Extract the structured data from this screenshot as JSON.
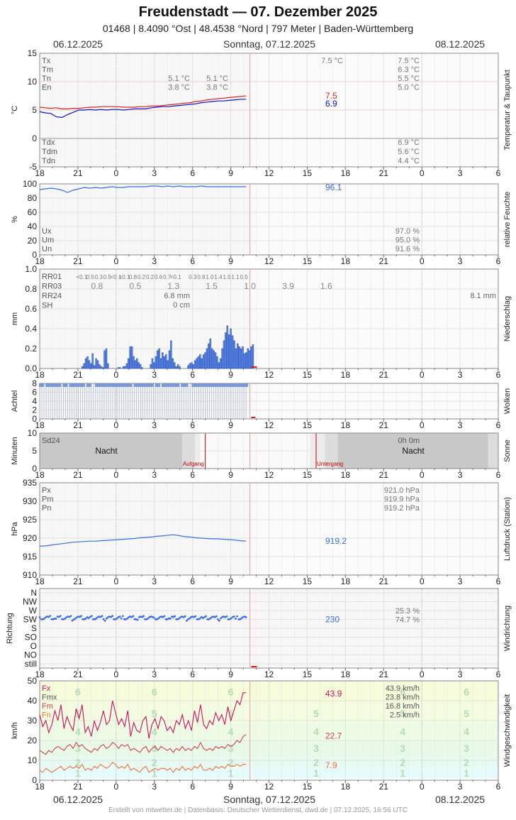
{
  "header": {
    "title": "Freudenstadt  —  07. Dezember 2025",
    "subtitle": "01468  |  8.4090 °Ost  |  48.4538 °Nord  |  797 Meter  |  Baden-Württemberg"
  },
  "dates": {
    "left": "06.12.2025",
    "center": "Sonntag, 07.12.2025",
    "right": "08.12.2025"
  },
  "footer": {
    "credit": "Erstellt von mtwetter.de | Datenbasis: Deutscher Wetterdienst, dwd.de | 07.12.2025, 16:56 UTC"
  },
  "colors": {
    "temp": "#e02020",
    "dew": "#1010d0",
    "blue": "#3a6ee8",
    "gust": "#cc1060",
    "mean_wind": "#d04050",
    "min_wind": "#f07040",
    "now_line": "#f0a0a0",
    "sun_event": "#cc0000"
  },
  "chart_data": [
    {
      "type": "line",
      "id": "temp",
      "ylabel": "°C",
      "side_label": "Temperatur & Taupunkt",
      "x_ticks": [
        "18",
        "21",
        "0",
        "3",
        "6",
        "9",
        "12",
        "15",
        "18",
        "21",
        "0",
        "3",
        "6"
      ],
      "ylim": [
        -5,
        15
      ],
      "y_ticks": [
        15,
        10,
        5,
        0,
        -5
      ],
      "series": [
        {
          "name": "Temperatur",
          "values": [
            5.5,
            5.4,
            5.3,
            5.4,
            5.2,
            5.2,
            5.3,
            5.3,
            5.4,
            5.5,
            5.5,
            5.6,
            5.6,
            5.6,
            5.6,
            5.5,
            5.5,
            5.5,
            5.6,
            5.6,
            5.7,
            5.7,
            5.8,
            5.9,
            6.0,
            6.1,
            6.2,
            6.3,
            6.5,
            6.6,
            6.8,
            6.9,
            7.0,
            7.1,
            7.2,
            7.3,
            7.4,
            7.5
          ],
          "last": "7.5"
        },
        {
          "name": "Taupunkt",
          "values": [
            4.7,
            4.5,
            4.4,
            3.8,
            3.7,
            4.2,
            4.6,
            5.0,
            5.0,
            5.1,
            5.0,
            5.1,
            5.0,
            5.1,
            5.1,
            5.0,
            5.1,
            5.2,
            5.2,
            5.2,
            5.4,
            5.5,
            5.6,
            5.6,
            5.7,
            5.8,
            5.9,
            6.0,
            6.1,
            6.3,
            6.4,
            6.5,
            6.6,
            6.6,
            6.7,
            6.8,
            6.9,
            6.9
          ],
          "last": "6.9"
        }
      ],
      "labels_left": [
        "Tx",
        "Tm",
        "Tn",
        "En"
      ],
      "labels_left_bottom": [
        "Tdx",
        "Tdm",
        "Tdn"
      ],
      "prev_values": [
        [
          "",
          ""
        ],
        [
          "",
          ""
        ],
        [
          "5.1 °C",
          "5.1 °C"
        ],
        [
          "3.8 °C",
          "3.8 °C"
        ]
      ],
      "current_top": "7.5 °C",
      "right_values": [
        "7.5 °C",
        "6.3 °C",
        "5.5 °C",
        "5.0 °C"
      ],
      "right_values_bottom": [
        "6.9 °C",
        "5.6 °C",
        "4.4 °C"
      ]
    },
    {
      "type": "line",
      "id": "humidity",
      "ylabel": "%",
      "side_label": "relative Feuchte",
      "ylim": [
        0,
        100
      ],
      "y_ticks": [
        100,
        80,
        60,
        40,
        20,
        0
      ],
      "series": [
        {
          "name": "Feuchte",
          "values": [
            92,
            93,
            94,
            93,
            91,
            88,
            91,
            93,
            95,
            94,
            95,
            94,
            95,
            96,
            95,
            95,
            96,
            96,
            96,
            96,
            97,
            97,
            96,
            97,
            96,
            97,
            96,
            96,
            96,
            97,
            96,
            96,
            96,
            96,
            96,
            96,
            96,
            96
          ],
          "last": "96.1"
        }
      ],
      "labels_left": [
        "Ux",
        "Um",
        "Un"
      ],
      "right_values": [
        "97.0 %",
        "95.0 %",
        "91.6 %"
      ]
    },
    {
      "type": "bar",
      "id": "precip",
      "ylabel": "mm",
      "side_label": "Niederschlag",
      "ylim": [
        0,
        1.0
      ],
      "y_ticks": [
        "1.0",
        "0.8",
        "0.6",
        "0.4",
        "0.2",
        "0.0"
      ],
      "values": [
        0.02,
        0.05,
        0.1,
        0.12,
        0.08,
        0.05,
        0.15,
        0.03,
        0.1,
        0.08,
        0.04,
        0.02,
        0.01,
        0.18,
        0.2,
        0.05,
        0,
        0,
        0,
        0,
        0,
        0.01,
        0.01,
        0,
        0.02,
        0.02,
        0.05,
        0.1,
        0.22,
        0.22,
        0.12,
        0.08,
        0.1,
        0.06,
        0.04,
        0.01,
        0,
        0,
        0,
        0,
        0.04,
        0.1,
        0.06,
        0.12,
        0.18,
        0.2,
        0.1,
        0.16,
        0.12,
        0.14,
        0.08,
        0.18,
        0.28,
        0.1,
        0.06,
        0.02,
        0.04,
        0.02,
        0,
        0,
        0,
        0,
        0.03,
        0.05,
        0.06,
        0.04,
        0.08,
        0.1,
        0.12,
        0.14,
        0.1,
        0.14,
        0.16,
        0.2,
        0.25,
        0.3,
        0.2,
        0.18,
        0.16,
        0.12,
        0.06,
        0.1,
        0.2,
        0.28,
        0.36,
        0.43,
        0.34,
        0.4,
        0.33,
        0.28,
        0.2,
        0.25,
        0.22,
        0.2,
        0.22,
        0.15,
        0.16,
        0.2,
        0.18,
        0.22,
        0.24
      ],
      "row_labels": [
        "RR01",
        "RR03",
        "RR24",
        "SH"
      ],
      "rr01": [
        "<0.1",
        "0.5",
        "0.3",
        "0.5",
        "<0.1",
        "<0.1",
        "0.8",
        "0.2",
        "0.2",
        "0.6",
        "0.7",
        "<0.1",
        "",
        "0.3",
        "0.8",
        "1.0",
        "1.4",
        "1.5",
        "1.1",
        "0.5"
      ],
      "rr03": [
        "0.8",
        "0.5",
        "1.3",
        "1.5",
        "1.0",
        "3.9",
        "1.6"
      ],
      "rr24_value": "6.8 mm",
      "sh_value": "0 cm",
      "rr_right": "8.1 mm"
    },
    {
      "type": "bar",
      "id": "clouds",
      "ylabel": "Achtel",
      "side_label": "Wolken",
      "ylim": [
        0,
        8
      ],
      "y_ticks": [
        8,
        6,
        4,
        2,
        0
      ]
    },
    {
      "type": "area",
      "id": "sun",
      "ylabel": "Minuten",
      "side_label": "Sonne",
      "ylim": [
        0,
        10
      ],
      "y_ticks": [
        10,
        5,
        0
      ],
      "sd24_label": "Sd24",
      "night_label": "Nacht",
      "sunrise_label": "Aufgang",
      "sunset_label": "Untergang",
      "sunshine": "0h 0m"
    },
    {
      "type": "line",
      "id": "pressure",
      "ylabel": "hPa",
      "side_label": "Luftdruck (Station)",
      "ylim": [
        910,
        935
      ],
      "y_ticks": [
        935,
        930,
        925,
        920,
        915,
        910
      ],
      "series": [
        {
          "name": "Luftdruck",
          "values": [
            917.8,
            917.9,
            918.1,
            918.3,
            918.5,
            918.7,
            918.9,
            919.0,
            919.1,
            919.2,
            919.2,
            919.3,
            919.4,
            919.5,
            919.6,
            919.7,
            919.8,
            919.9,
            920.1,
            920.2,
            920.3,
            920.5,
            920.6,
            920.8,
            920.9,
            920.7,
            920.4,
            920.3,
            920.1,
            920.0,
            919.9,
            919.8,
            919.8,
            919.7,
            919.6,
            919.5,
            919.3,
            919.2
          ],
          "last": "919.2"
        }
      ],
      "labels_left": [
        "Px",
        "Pm",
        "Pn"
      ],
      "right_values": [
        "921.0 hPa",
        "919.9 hPa",
        "919.2 hPa"
      ]
    },
    {
      "type": "scatter",
      "id": "winddir",
      "ylabel": "Richtung",
      "side_label": "Windrichtung",
      "categories": [
        "N",
        "NW",
        "W",
        "SW",
        "S",
        "SO",
        "O",
        "NO",
        "still"
      ],
      "last": "230",
      "right_values": [
        "25.3 %",
        "74.7 %"
      ]
    },
    {
      "type": "line",
      "id": "windspeed",
      "ylabel": "km/h",
      "side_label": "Windgeschwindigkeit",
      "ylim": [
        0,
        50
      ],
      "y_ticks": [
        50,
        40,
        30,
        20,
        10,
        0
      ],
      "bft_bands": [
        {
          "from": 0,
          "to": 1,
          "color": "#ffffff"
        },
        {
          "from": 1,
          "to": 6,
          "color": "#e6fbfb"
        },
        {
          "from": 6,
          "to": 12,
          "color": "#e6faf2"
        },
        {
          "from": 12,
          "to": 20,
          "color": "#e8f9e8"
        },
        {
          "from": 20,
          "to": 29,
          "color": "#eefbe4"
        },
        {
          "from": 29,
          "to": 39,
          "color": "#f3fce0"
        },
        {
          "from": 39,
          "to": 50,
          "color": "#f6fcda"
        }
      ],
      "bft_marks": [
        "6",
        "5",
        "4",
        "3",
        "2",
        "1"
      ],
      "series": [
        {
          "name": "Fx",
          "values": [
            33,
            27,
            30,
            24,
            28,
            35,
            30,
            38,
            26,
            32,
            28,
            25,
            36,
            31,
            38,
            24,
            27,
            22,
            30,
            25,
            29,
            35,
            28,
            30,
            40,
            34,
            28,
            31,
            27,
            35,
            22,
            29,
            25,
            24,
            30,
            32,
            21,
            28,
            31,
            26,
            32,
            30,
            25,
            27,
            24,
            30,
            28,
            33,
            26,
            30,
            25,
            35,
            29,
            38,
            28,
            26,
            30,
            28,
            34,
            30,
            33,
            28,
            37,
            30,
            35,
            40,
            38,
            44,
            44
          ],
          "last": "43.9"
        },
        {
          "name": "Fmx",
          "values": [
            15,
            14,
            13,
            15,
            14,
            16,
            17,
            16,
            15,
            17,
            18,
            16,
            19,
            17,
            18,
            16,
            15,
            14,
            16,
            15,
            17,
            18,
            16,
            17,
            19,
            18,
            16,
            18,
            17,
            18,
            15,
            16,
            15,
            14,
            16,
            17,
            14,
            16,
            17,
            15,
            17,
            16,
            15,
            16,
            14,
            16,
            15,
            17,
            15,
            16,
            15,
            17,
            16,
            19,
            16,
            15,
            16,
            15,
            17,
            16,
            17,
            16,
            18,
            17,
            18,
            20,
            19,
            22,
            23
          ],
          "last": "22.7"
        },
        {
          "name": "Fm",
          "values": [
            5,
            4,
            6,
            5,
            4,
            5,
            6,
            7,
            5,
            6,
            7,
            6,
            7,
            6,
            8,
            5,
            6,
            5,
            7,
            6,
            8,
            7,
            6,
            7,
            9,
            8,
            6,
            7,
            6,
            8,
            5,
            6,
            5,
            4,
            6,
            7,
            4,
            5,
            6,
            5,
            6,
            6,
            5,
            6,
            4,
            6,
            5,
            7,
            5,
            6,
            5,
            7,
            6,
            8,
            5,
            5,
            6,
            5,
            7,
            6,
            7,
            6,
            8,
            7,
            7,
            8,
            7,
            8,
            8
          ],
          "last": "7.9"
        }
      ],
      "labels_left": [
        "Fx",
        "Fmx",
        "Fm",
        "Fn"
      ],
      "right_values": [
        "43.9 km/h",
        "23.8 km/h",
        "16.8 km/h",
        "2.5 km/h"
      ]
    }
  ]
}
